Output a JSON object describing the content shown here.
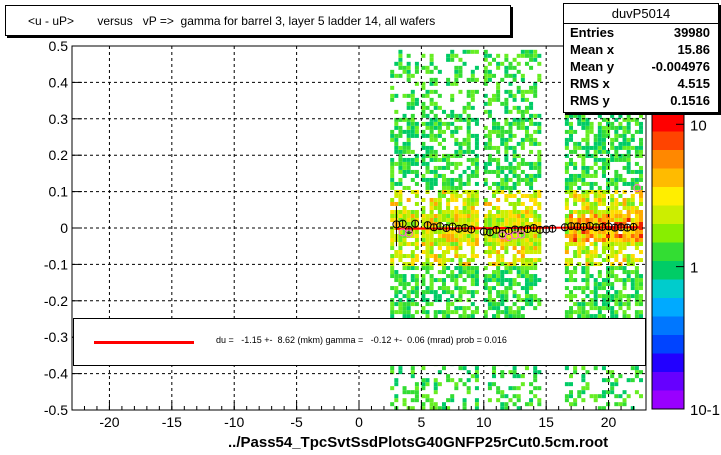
{
  "title": "<u - uP>       versus   vP =>  gamma for barrel 3, layer 5 ladder 14, all wafers",
  "footer": "../Pass54_TpcSvtSsdPlotsG40GNFP25rCut0.5cm.root",
  "stats": {
    "name": "duvP5014",
    "rows": [
      {
        "label": "Entries",
        "value": "39980"
      },
      {
        "label": "Mean x",
        "value": "15.86"
      },
      {
        "label": "Mean y",
        "value": "-0.004976"
      },
      {
        "label": "RMS x",
        "value": "4.515"
      },
      {
        "label": "RMS y",
        "value": "0.1516"
      }
    ]
  },
  "legend": {
    "text": "du =   -1.15 +-  8.62 (mkm) gamma =   -0.12 +-  0.06 (mrad) prob = 0.016",
    "line_color": "#ff0000"
  },
  "colors": {
    "fit_line": "#ff0000",
    "profile_markers": "#000000",
    "secondary_markers": "#ff66cc"
  },
  "chart_data": {
    "type": "heatmap",
    "xlim": [
      -23,
      23
    ],
    "ylim": [
      -0.5,
      0.5
    ],
    "x_ticks": [
      -20,
      -15,
      -10,
      -5,
      0,
      5,
      10,
      15,
      20
    ],
    "y_ticks": [
      -0.5,
      -0.4,
      -0.3,
      -0.2,
      -0.1,
      0,
      0.1,
      0.2,
      0.3,
      0.4,
      0.5
    ],
    "x_tick_labels": [
      "-20",
      "-15",
      "-10",
      "-5",
      "0",
      "5",
      "10",
      "15",
      "20"
    ],
    "y_tick_labels": [
      "-0.5",
      "-0.4",
      "-0.3",
      "-0.2",
      "-0.1",
      "0",
      "0.1",
      "0.2",
      "0.3",
      "0.4",
      "0.5"
    ],
    "grid": true,
    "color_scale": {
      "type": "log",
      "range": [
        0.1,
        12
      ],
      "tick_labels": [
        "10",
        "1",
        "10-1"
      ],
      "ticks": [
        10,
        1,
        0.1
      ]
    },
    "occupied_x_ranges": [
      [
        2.5,
        4.5
      ],
      [
        5,
        9.5
      ],
      [
        10,
        14.5
      ],
      [
        16.5,
        22.5
      ]
    ],
    "profile_points": [
      {
        "x": 3.0,
        "y": 0.01
      },
      {
        "x": 3.5,
        "y": 0.012
      },
      {
        "x": 4.0,
        "y": -0.005
      },
      {
        "x": 4.5,
        "y": 0.012
      },
      {
        "x": 5.5,
        "y": 0.008
      },
      {
        "x": 6.0,
        "y": 0.002
      },
      {
        "x": 6.5,
        "y": 0.005
      },
      {
        "x": 7.0,
        "y": 0.0
      },
      {
        "x": 7.5,
        "y": 0.004
      },
      {
        "x": 8.0,
        "y": -0.002
      },
      {
        "x": 8.5,
        "y": 0.0
      },
      {
        "x": 9.0,
        "y": -0.004
      },
      {
        "x": 10.0,
        "y": -0.01
      },
      {
        "x": 10.5,
        "y": -0.012
      },
      {
        "x": 11.0,
        "y": -0.005
      },
      {
        "x": 11.5,
        "y": -0.015
      },
      {
        "x": 12.0,
        "y": -0.008
      },
      {
        "x": 12.5,
        "y": -0.004
      },
      {
        "x": 13.0,
        "y": -0.006
      },
      {
        "x": 13.5,
        "y": -0.003
      },
      {
        "x": 14.0,
        "y": 0.0
      },
      {
        "x": 14.5,
        "y": -0.005
      },
      {
        "x": 15.0,
        "y": -0.004
      },
      {
        "x": 15.5,
        "y": -0.002
      },
      {
        "x": 16.5,
        "y": 0.002
      },
      {
        "x": 17.0,
        "y": 0.005
      },
      {
        "x": 17.5,
        "y": 0.004
      },
      {
        "x": 18.0,
        "y": 0.003
      },
      {
        "x": 18.5,
        "y": 0.006
      },
      {
        "x": 19.0,
        "y": 0.002
      },
      {
        "x": 19.5,
        "y": 0.003
      },
      {
        "x": 20.0,
        "y": 0.004
      },
      {
        "x": 20.5,
        "y": 0.001
      },
      {
        "x": 21.0,
        "y": 0.002
      },
      {
        "x": 21.5,
        "y": 0.001
      },
      {
        "x": 22.0,
        "y": 0.003
      }
    ],
    "secondary_points": [
      {
        "x": 3.5,
        "y": -0.012
      },
      {
        "x": 4.0,
        "y": -0.015
      },
      {
        "x": 11.5,
        "y": -0.02
      },
      {
        "x": 12.0,
        "y": -0.025
      },
      {
        "x": 12.5,
        "y": -0.02
      },
      {
        "x": 13.0,
        "y": -0.018
      },
      {
        "x": 22.3,
        "y": 0.11
      }
    ],
    "fit_line": {
      "x": [
        3,
        22.5
      ],
      "y": [
        -0.002,
        0.002
      ]
    }
  }
}
